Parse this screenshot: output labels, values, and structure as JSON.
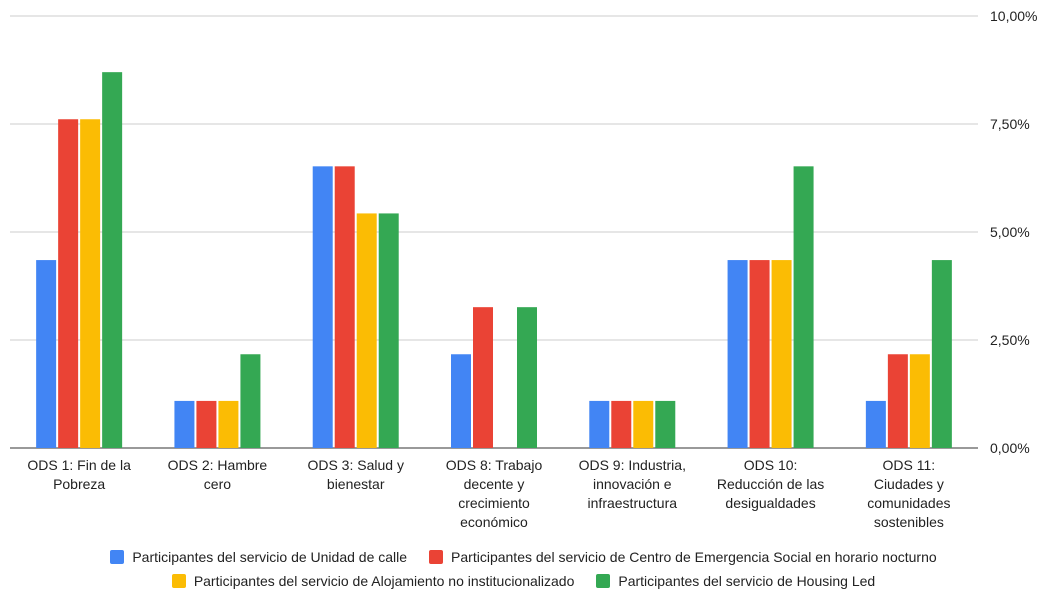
{
  "chart_data": {
    "type": "bar",
    "categories": [
      "ODS 1: Fin de la Pobreza",
      "ODS 2: Hambre cero",
      "ODS 3: Salud y bienestar",
      "ODS 8: Trabajo decente y crecimiento económico",
      "ODS 9: Industria, innovación e infraestructura",
      "ODS 10: Reducción de las desigualdades",
      "ODS 11: Ciudades y comunidades sostenibles"
    ],
    "category_lines": [
      [
        "ODS 1: Fin de la",
        "Pobreza"
      ],
      [
        "ODS 2: Hambre",
        "cero"
      ],
      [
        "ODS 3: Salud y",
        "bienestar"
      ],
      [
        "ODS 8: Trabajo",
        "decente y",
        "crecimiento",
        "económico"
      ],
      [
        "ODS 9: Industria,",
        "innovación e",
        "infraestructura"
      ],
      [
        "ODS 10:",
        "Reducción de las",
        "desigualdades"
      ],
      [
        "ODS 11:",
        "Ciudades y",
        "comunidades",
        "sostenibles"
      ]
    ],
    "series": [
      {
        "name": "Participantes del servicio de Unidad de calle",
        "color": "#4285F4",
        "values": [
          4.35,
          1.09,
          6.52,
          2.17,
          1.09,
          4.35,
          1.09
        ]
      },
      {
        "name": "Participantes del servicio de Centro de Emergencia Social en horario nocturno",
        "color": "#EA4335",
        "values": [
          7.61,
          1.09,
          6.52,
          3.26,
          1.09,
          4.35,
          2.17
        ]
      },
      {
        "name": "Participantes del servicio de Alojamiento no institucionalizado",
        "color": "#FBBC04",
        "values": [
          7.61,
          1.09,
          5.43,
          0,
          1.09,
          4.35,
          2.17
        ]
      },
      {
        "name": "Participantes del servicio de Housing Led",
        "color": "#34A853",
        "values": [
          8.7,
          2.17,
          5.43,
          3.26,
          1.09,
          6.52,
          4.35
        ]
      }
    ],
    "ylim": [
      0,
      10
    ],
    "yticks": [
      "0,00%",
      "2,50%",
      "5,00%",
      "7,50%",
      "10,00%"
    ],
    "y_axis_side": "right",
    "grid": true,
    "legend_position": "bottom"
  }
}
